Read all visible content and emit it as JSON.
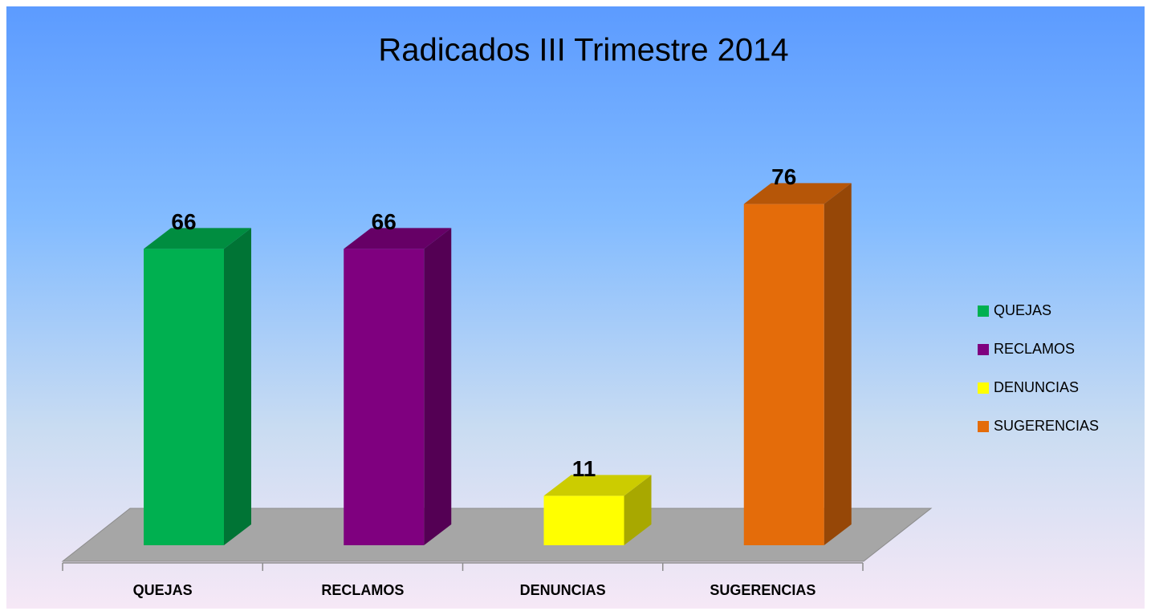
{
  "chart_data": {
    "type": "bar3d",
    "title": "Radicados III Trimestre 2014",
    "categories": [
      "QUEJAS",
      "RECLAMOS",
      "DENUNCIAS",
      "SUGERENCIAS"
    ],
    "values": [
      66,
      66,
      11,
      76
    ],
    "colors": [
      "#00b050",
      "#7f007f",
      "#ffff00",
      "#e46c0a"
    ],
    "legend": "right"
  }
}
